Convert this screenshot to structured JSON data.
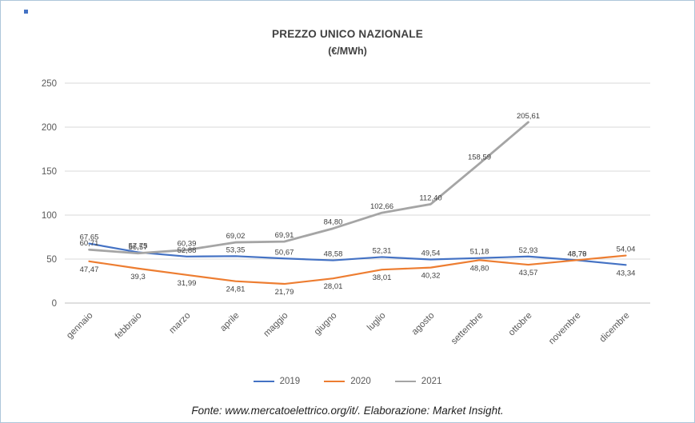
{
  "chart_data": {
    "type": "line",
    "title": "PREZZO UNICO NAZIONALE",
    "subtitle": "(€/MWh)",
    "xlabel": "",
    "ylabel": "",
    "ylim": [
      0,
      250
    ],
    "yticks": [
      0,
      50,
      100,
      150,
      200,
      250
    ],
    "grid": true,
    "legend_position": "bottom",
    "categories": [
      "gennaio",
      "febbraio",
      "marzo",
      "aprile",
      "maggio",
      "giugno",
      "luglio",
      "agosto",
      "settembre",
      "ottobre",
      "novembre",
      "dicembre"
    ],
    "series": [
      {
        "name": "2019",
        "color": "#4472C4",
        "stroke_width": 2.2,
        "values": [
          67.65,
          57.75,
          52.88,
          53.35,
          50.67,
          48.58,
          52.31,
          49.54,
          51.18,
          52.93,
          48.76,
          43.34
        ],
        "labels": [
          "67,65",
          "57,75",
          "52,88",
          "53,35",
          "50,67",
          "48,58",
          "52,31",
          "49,54",
          "51,18",
          "52,93",
          "48,76",
          "43,34"
        ],
        "label_positions": [
          "above",
          "above",
          "above",
          "above",
          "above",
          "above",
          "above",
          "above",
          "above",
          "above",
          "above",
          "below"
        ]
      },
      {
        "name": "2020",
        "color": "#ED7D31",
        "stroke_width": 2.2,
        "values": [
          47.47,
          39.3,
          31.99,
          24.81,
          21.79,
          28.01,
          38.01,
          40.32,
          48.8,
          43.57,
          48.79,
          54.04
        ],
        "labels": [
          "47,47",
          "39,3",
          "31,99",
          "24,81",
          "21,79",
          "28,01",
          "38,01",
          "40,32",
          "48,80",
          "43,57",
          "48,79",
          "54,04"
        ],
        "label_positions": [
          "below",
          "below",
          "below",
          "below",
          "below",
          "below",
          "below",
          "below",
          "below",
          "below",
          "above",
          "above"
        ]
      },
      {
        "name": "2021",
        "color": "#A5A5A5",
        "stroke_width": 2.8,
        "values": [
          60.71,
          56.57,
          60.39,
          69.02,
          69.91,
          84.8,
          102.66,
          112.4,
          158.59,
          205.61
        ],
        "labels": [
          "60,71",
          "56,57",
          "60,39",
          "69,02",
          "69,91",
          "84,80",
          "102,66",
          "112,40",
          "158,59",
          "205,61"
        ],
        "label_positions": [
          "above",
          "above",
          "above",
          "above",
          "above",
          "above",
          "above",
          "above",
          "above",
          "above"
        ]
      }
    ],
    "colors": {
      "gridline": "#D9D9D9",
      "axis_line": "#BFBFBF",
      "tick_label": "#595959",
      "data_label": "#404040"
    }
  },
  "figure": {
    "footer": "Fonte: www.mercatoelettrico.org/it/. Elaborazione: Market Insight."
  }
}
